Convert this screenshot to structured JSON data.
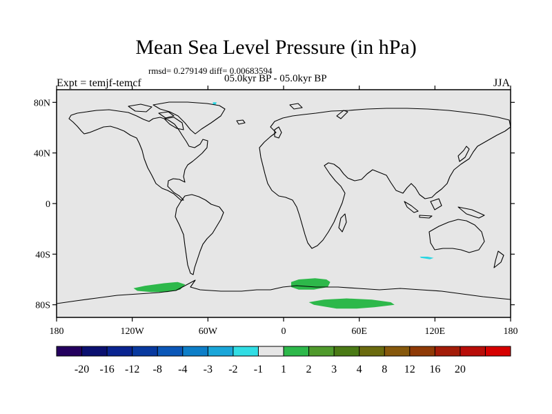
{
  "header": {
    "title": "Mean Sea Level Pressure (in hPa)",
    "stats": "rmsd= 0.279149 diff= 0.00683594",
    "period": "05.0kyr BP - 05.0kyr BP",
    "experiment": "Expt = temjf-temcf",
    "season": "JJA"
  },
  "map": {
    "lon_range": [
      -180,
      180
    ],
    "lat_range": [
      -90,
      90
    ],
    "background_color": "#e6e6e6",
    "lat_ticks": [
      {
        "value": 80,
        "label": "80N"
      },
      {
        "value": 40,
        "label": "40N"
      },
      {
        "value": 0,
        "label": "0"
      },
      {
        "value": -40,
        "label": "40S"
      },
      {
        "value": -80,
        "label": "80S"
      }
    ],
    "lon_ticks": [
      {
        "value": -180,
        "label": "180"
      },
      {
        "value": -120,
        "label": "120W"
      },
      {
        "value": -60,
        "label": "60W"
      },
      {
        "value": 0,
        "label": "0"
      },
      {
        "value": 60,
        "label": "60E"
      },
      {
        "value": 120,
        "label": "120E"
      },
      {
        "value": 180,
        "label": "180"
      }
    ],
    "anomaly_patches": [
      {
        "name": "amundsen-sea-patch",
        "category": "1 to 2",
        "color": "#2db84a",
        "lon": [
          -119,
          -110,
          -95,
          -84,
          -78,
          -82,
          -92,
          -105,
          -116
        ],
        "lat": [
          -67,
          -65,
          -63,
          -62,
          -64,
          -68,
          -70,
          -70,
          -69
        ]
      },
      {
        "name": "dronning-maud-patch",
        "category": "1 to 2",
        "color": "#2db84a",
        "lon": [
          6,
          12,
          25,
          34,
          37,
          35,
          24,
          12,
          6
        ],
        "lat": [
          -62,
          -60,
          -59,
          -60,
          -62,
          -66,
          -68,
          -68,
          -66
        ]
      },
      {
        "name": "east-antarctic-patch",
        "category": "1 to 2",
        "color": "#2db84a",
        "lon": [
          20,
          32,
          50,
          70,
          85,
          88,
          72,
          58,
          42,
          24
        ],
        "lat": [
          -78,
          -76,
          -75,
          -76,
          -78,
          -80,
          -82,
          -83,
          -83,
          -80
        ]
      },
      {
        "name": "south-indian-ocean-patch",
        "category": "-2 to -1",
        "color": "#2ad6e2",
        "lon": [
          108,
          114,
          119,
          116,
          109
        ],
        "lat": [
          -42,
          -42,
          -43,
          -44,
          -43
        ]
      },
      {
        "name": "greenland-patch",
        "category": "-2 to -1",
        "color": "#2ad6e2",
        "lon": [
          -56,
          -53,
          -54,
          -56
        ],
        "lat": [
          80,
          80,
          78,
          78
        ]
      }
    ]
  },
  "colorbar": {
    "colors": [
      "#24005e",
      "#0b1070",
      "#0a2490",
      "#08399f",
      "#0b57b8",
      "#0d7ec8",
      "#1aa6d9",
      "#31dde4",
      "#e6e6e6",
      "#2db84a",
      "#4f9a2c",
      "#4a7a15",
      "#6a6a0e",
      "#86580c",
      "#8f3a06",
      "#a31c08",
      "#b80d08",
      "#d60000"
    ],
    "labels": [
      "-20",
      "-16",
      "-12",
      "-8",
      "-4",
      "-3",
      "-2",
      "-1",
      "1",
      "2",
      "3",
      "4",
      "8",
      "12",
      "16",
      "20"
    ]
  }
}
